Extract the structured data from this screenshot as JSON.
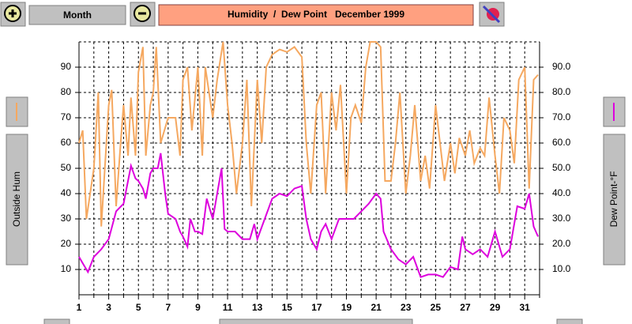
{
  "ui": {
    "period_button": "Month"
  },
  "chart_data": {
    "type": "line",
    "title": "Humidity  /  Dew Point   December 1999",
    "xlim": [
      1,
      32
    ],
    "xticks": [
      1,
      3,
      5,
      7,
      9,
      11,
      13,
      15,
      17,
      19,
      21,
      23,
      25,
      27,
      29,
      31
    ],
    "xminor": [
      2,
      4,
      6,
      8,
      10,
      12,
      14,
      16,
      18,
      20,
      22,
      24,
      26,
      28,
      30,
      32
    ],
    "ylim": [
      0,
      100
    ],
    "yticks": [
      10,
      20,
      30,
      40,
      50,
      60,
      70,
      80,
      90
    ],
    "y2lim": [
      0,
      100
    ],
    "y2ticks": [
      {
        "value": 10,
        "label": "10.0"
      },
      {
        "value": 20,
        "label": "20.0"
      },
      {
        "value": 30,
        "label": "30.0"
      },
      {
        "value": 40,
        "label": "40.0"
      },
      {
        "value": 50,
        "label": "50.0"
      },
      {
        "value": 60,
        "label": "60.0"
      },
      {
        "value": 70,
        "label": "70.0"
      },
      {
        "value": 80,
        "label": "80.0"
      },
      {
        "value": 90,
        "label": "90.0"
      }
    ],
    "grid": true,
    "series": [
      {
        "name": "Outside Hum",
        "color": "#f5a860",
        "x": [
          1,
          1.25,
          1.5,
          2,
          2.3,
          2.5,
          3,
          3.2,
          3.5,
          3.8,
          4,
          4.3,
          4.5,
          4.8,
          5,
          5.3,
          5.5,
          5.8,
          6,
          6.2,
          6.5,
          7,
          7.5,
          7.8,
          8,
          8.3,
          8.6,
          9,
          9.3,
          9.5,
          10,
          10.3,
          10.7,
          11,
          11.3,
          11.6,
          12,
          12.3,
          12.6,
          13,
          13.3,
          13.6,
          14,
          14.5,
          15,
          15.5,
          16,
          16.3,
          16.6,
          17,
          17.3,
          17.6,
          18,
          18.3,
          18.6,
          19,
          19.3,
          19.6,
          20,
          20.3,
          20.6,
          21,
          21.3,
          21.6,
          22,
          22.3,
          22.6,
          23,
          23.3,
          23.6,
          24,
          24.3,
          24.6,
          25,
          25.3,
          25.6,
          26,
          26.3,
          26.6,
          27,
          27.3,
          27.6,
          28,
          28.3,
          28.6,
          29,
          29.3,
          29.6,
          30,
          30.3,
          30.6,
          31,
          31.3,
          31.6,
          31.9
        ],
        "values": [
          60,
          65,
          30,
          50,
          80,
          27,
          75,
          81,
          35,
          60,
          75,
          55,
          78,
          55,
          88,
          98,
          55,
          75,
          80,
          98,
          60,
          70,
          70,
          55,
          85,
          90,
          65,
          90,
          55,
          90,
          70,
          85,
          100,
          75,
          60,
          40,
          60,
          85,
          35,
          85,
          60,
          90,
          95,
          97,
          96,
          98,
          94,
          60,
          40,
          75,
          80,
          40,
          80,
          65,
          83,
          40,
          70,
          75,
          68,
          90,
          100,
          100,
          98,
          45,
          45,
          60,
          80,
          40,
          55,
          75,
          45,
          55,
          42,
          75,
          60,
          45,
          60,
          48,
          62,
          55,
          65,
          52,
          58,
          55,
          78,
          55,
          40,
          70,
          65,
          52,
          85,
          90,
          42,
          85,
          87
        ]
      },
      {
        "name": "Dew Point-°F",
        "color": "#dd00dd",
        "axis": "y2",
        "x": [
          1,
          1.3,
          1.6,
          2,
          2.5,
          3,
          3.5,
          4,
          4.5,
          4.8,
          5,
          5.3,
          5.5,
          5.8,
          6,
          6.3,
          6.5,
          6.8,
          7,
          7.5,
          7.8,
          8,
          8.3,
          8.5,
          8.8,
          9,
          9.3,
          9.6,
          10,
          10.3,
          10.6,
          10.8,
          11,
          11.5,
          12,
          12.5,
          12.8,
          13,
          13.5,
          14,
          14.5,
          15,
          15.5,
          16,
          16.3,
          16.6,
          17,
          17.3,
          17.6,
          18,
          18.5,
          19,
          19.5,
          20,
          20.5,
          21,
          21.3,
          21.5,
          22,
          22.5,
          23,
          23.5,
          24,
          24.5,
          25,
          25.5,
          26,
          26.5,
          26.8,
          27,
          27.5,
          28,
          28.5,
          29,
          29.5,
          30,
          30.5,
          31,
          31.3,
          31.6,
          31.9
        ],
        "values": [
          15,
          12,
          9,
          15,
          18,
          22,
          33,
          36,
          51,
          46,
          45,
          42,
          38,
          48,
          50,
          50,
          56,
          40,
          32,
          30,
          25,
          23,
          19,
          30,
          25,
          25,
          24,
          38,
          30,
          40,
          50,
          26,
          25,
          25,
          22,
          22,
          28,
          22,
          30,
          38,
          40,
          39,
          42,
          43,
          30,
          22,
          18,
          25,
          28,
          22,
          30,
          30,
          30,
          33,
          36,
          40,
          38,
          25,
          18,
          14,
          12,
          15,
          7,
          8,
          8,
          7,
          11,
          10,
          23,
          18,
          16,
          18,
          15,
          25,
          15,
          18,
          35,
          34,
          40,
          27,
          23
        ]
      }
    ]
  }
}
